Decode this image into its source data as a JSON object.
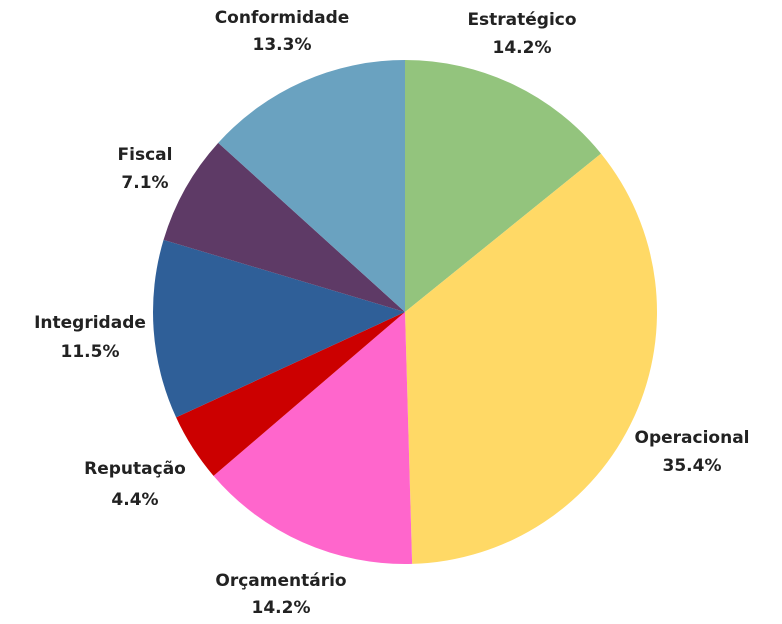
{
  "chart_data": {
    "type": "pie",
    "categories": [
      "Estratégico",
      "Operacional",
      "Orçamentário",
      "Reputação",
      "Integridade",
      "Fiscal",
      "Conformidade"
    ],
    "values": [
      14.2,
      35.4,
      14.2,
      4.4,
      11.5,
      7.1,
      13.3
    ],
    "value_labels": [
      "14.2%",
      "35.4%",
      "14.2%",
      "4.4%",
      "11.5%",
      "7.1%",
      "13.3%"
    ],
    "colors": [
      "#93c47d",
      "#ffd966",
      "#ff66cc",
      "#cc0000",
      "#2f5f98",
      "#5e3a66",
      "#6aa2c0"
    ]
  }
}
